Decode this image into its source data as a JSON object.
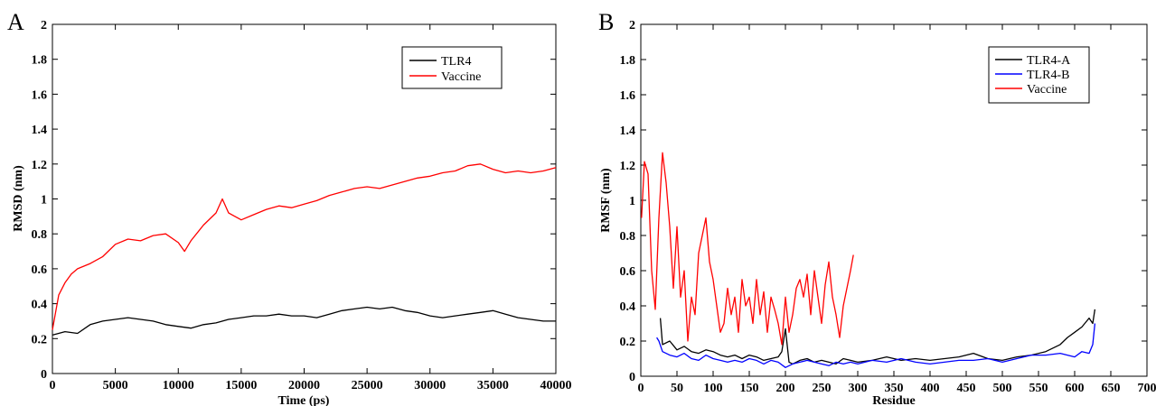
{
  "panels": {
    "a": {
      "letter": "A"
    },
    "b": {
      "letter": "B"
    }
  },
  "chart_data": [
    {
      "type": "line",
      "panel": "A",
      "xlabel": "Time (ps)",
      "ylabel": "RMSD (nm)",
      "xlim": [
        0,
        40000
      ],
      "ylim": [
        0,
        2
      ],
      "xticks": [
        "0",
        "5000",
        "10000",
        "15000",
        "20000",
        "25000",
        "30000",
        "35000",
        "40000"
      ],
      "yticks": [
        "0",
        "0.2",
        "0.4",
        "0.6",
        "0.8",
        "1",
        "1.2",
        "1.4",
        "1.6",
        "1.8",
        "2"
      ],
      "legend_position": "top-right",
      "series": [
        {
          "name": "TLR4",
          "color": "#000000",
          "x": [
            0,
            1000,
            2000,
            3000,
            4000,
            5000,
            6000,
            7000,
            8000,
            9000,
            10000,
            11000,
            12000,
            13000,
            14000,
            15000,
            16000,
            17000,
            18000,
            19000,
            20000,
            21000,
            22000,
            23000,
            24000,
            25000,
            26000,
            27000,
            28000,
            29000,
            30000,
            31000,
            32000,
            33000,
            34000,
            35000,
            36000,
            37000,
            38000,
            39000,
            40000
          ],
          "y": [
            0.22,
            0.24,
            0.23,
            0.28,
            0.3,
            0.31,
            0.32,
            0.31,
            0.3,
            0.28,
            0.27,
            0.26,
            0.28,
            0.29,
            0.31,
            0.32,
            0.33,
            0.33,
            0.34,
            0.33,
            0.33,
            0.32,
            0.34,
            0.36,
            0.37,
            0.38,
            0.37,
            0.38,
            0.36,
            0.35,
            0.33,
            0.32,
            0.33,
            0.34,
            0.35,
            0.36,
            0.34,
            0.32,
            0.31,
            0.3,
            0.3
          ]
        },
        {
          "name": "Vaccine",
          "color": "#ff0000",
          "x": [
            0,
            500,
            1000,
            1500,
            2000,
            3000,
            4000,
            5000,
            6000,
            7000,
            8000,
            9000,
            10000,
            10500,
            11000,
            12000,
            13000,
            13500,
            14000,
            15000,
            16000,
            17000,
            18000,
            19000,
            20000,
            21000,
            22000,
            23000,
            24000,
            25000,
            26000,
            27000,
            28000,
            29000,
            30000,
            31000,
            32000,
            33000,
            34000,
            35000,
            36000,
            37000,
            38000,
            39000,
            40000
          ],
          "y": [
            0.25,
            0.45,
            0.52,
            0.57,
            0.6,
            0.63,
            0.67,
            0.74,
            0.77,
            0.76,
            0.79,
            0.8,
            0.75,
            0.7,
            0.76,
            0.85,
            0.92,
            1.0,
            0.92,
            0.88,
            0.91,
            0.94,
            0.96,
            0.95,
            0.97,
            0.99,
            1.02,
            1.04,
            1.06,
            1.07,
            1.06,
            1.08,
            1.1,
            1.12,
            1.13,
            1.15,
            1.16,
            1.19,
            1.2,
            1.17,
            1.15,
            1.16,
            1.15,
            1.16,
            1.18
          ]
        }
      ]
    },
    {
      "type": "line",
      "panel": "B",
      "xlabel": "Residue",
      "ylabel": "RMSF (nm)",
      "xlim": [
        0,
        700
      ],
      "ylim": [
        0,
        2
      ],
      "xticks": [
        "0",
        "50",
        "100",
        "150",
        "200",
        "250",
        "300",
        "350",
        "400",
        "450",
        "500",
        "550",
        "600",
        "650",
        "700"
      ],
      "yticks": [
        "0",
        "0.2",
        "0.4",
        "0.6",
        "0.8",
        "1",
        "1.2",
        "1.4",
        "1.6",
        "1.8",
        "2"
      ],
      "legend_position": "top-right",
      "series": [
        {
          "name": "TLR4-A",
          "color": "#000000",
          "x": [
            27,
            30,
            40,
            50,
            60,
            70,
            80,
            90,
            100,
            110,
            120,
            130,
            140,
            150,
            160,
            170,
            180,
            190,
            195,
            200,
            205,
            210,
            220,
            230,
            240,
            250,
            260,
            270,
            280,
            290,
            300,
            320,
            340,
            360,
            380,
            400,
            420,
            440,
            460,
            480,
            500,
            520,
            540,
            560,
            580,
            590,
            600,
            610,
            620,
            625,
            628
          ],
          "y": [
            0.33,
            0.18,
            0.2,
            0.15,
            0.17,
            0.14,
            0.13,
            0.15,
            0.14,
            0.12,
            0.11,
            0.12,
            0.1,
            0.12,
            0.11,
            0.09,
            0.1,
            0.11,
            0.14,
            0.27,
            0.08,
            0.07,
            0.09,
            0.1,
            0.08,
            0.09,
            0.08,
            0.07,
            0.1,
            0.09,
            0.08,
            0.09,
            0.11,
            0.09,
            0.1,
            0.09,
            0.1,
            0.11,
            0.13,
            0.1,
            0.09,
            0.11,
            0.12,
            0.14,
            0.18,
            0.22,
            0.25,
            0.28,
            0.33,
            0.3,
            0.38
          ]
        },
        {
          "name": "TLR4-B",
          "color": "#0000ff",
          "x": [
            22,
            25,
            30,
            40,
            50,
            60,
            70,
            80,
            90,
            100,
            110,
            120,
            130,
            140,
            150,
            160,
            170,
            180,
            190,
            200,
            210,
            220,
            230,
            240,
            250,
            260,
            270,
            280,
            290,
            300,
            320,
            340,
            360,
            380,
            400,
            420,
            440,
            460,
            480,
            500,
            520,
            540,
            560,
            580,
            590,
            600,
            610,
            620,
            625,
            628
          ],
          "y": [
            0.22,
            0.2,
            0.14,
            0.12,
            0.11,
            0.13,
            0.1,
            0.09,
            0.12,
            0.1,
            0.09,
            0.08,
            0.09,
            0.08,
            0.1,
            0.09,
            0.07,
            0.09,
            0.08,
            0.05,
            0.07,
            0.08,
            0.09,
            0.08,
            0.07,
            0.06,
            0.08,
            0.07,
            0.08,
            0.07,
            0.09,
            0.08,
            0.1,
            0.08,
            0.07,
            0.08,
            0.09,
            0.09,
            0.1,
            0.08,
            0.1,
            0.12,
            0.12,
            0.13,
            0.12,
            0.11,
            0.14,
            0.13,
            0.18,
            0.3
          ]
        },
        {
          "name": "Vaccine",
          "color": "#ff0000",
          "x": [
            1,
            5,
            10,
            15,
            20,
            25,
            30,
            35,
            40,
            45,
            50,
            55,
            60,
            65,
            70,
            75,
            80,
            85,
            90,
            95,
            100,
            105,
            110,
            115,
            120,
            125,
            130,
            135,
            140,
            145,
            150,
            155,
            160,
            165,
            170,
            175,
            180,
            185,
            190,
            195,
            200,
            205,
            210,
            215,
            220,
            225,
            230,
            235,
            240,
            245,
            250,
            255,
            260,
            265,
            270,
            275,
            280,
            285,
            290,
            294
          ],
          "y": [
            0.9,
            1.22,
            1.15,
            0.6,
            0.38,
            0.9,
            1.27,
            1.1,
            0.85,
            0.5,
            0.85,
            0.45,
            0.6,
            0.2,
            0.45,
            0.35,
            0.7,
            0.8,
            0.9,
            0.65,
            0.55,
            0.4,
            0.25,
            0.3,
            0.5,
            0.35,
            0.45,
            0.25,
            0.55,
            0.4,
            0.45,
            0.3,
            0.55,
            0.35,
            0.48,
            0.25,
            0.45,
            0.38,
            0.3,
            0.18,
            0.45,
            0.25,
            0.35,
            0.5,
            0.55,
            0.45,
            0.58,
            0.35,
            0.6,
            0.45,
            0.3,
            0.52,
            0.65,
            0.45,
            0.35,
            0.22,
            0.4,
            0.5,
            0.6,
            0.69
          ]
        }
      ]
    }
  ]
}
